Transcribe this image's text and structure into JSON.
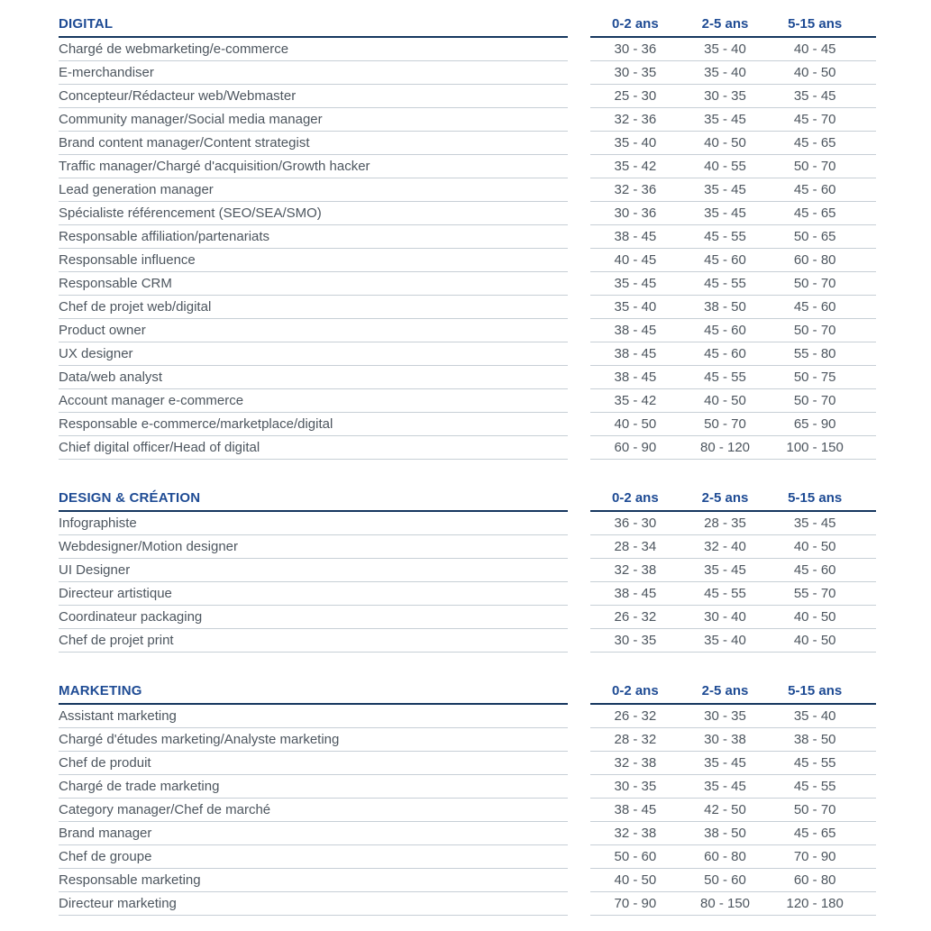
{
  "columns": [
    "0-2 ans",
    "2-5 ans",
    "5-15 ans"
  ],
  "colors": {
    "header_text": "#1e4b94",
    "header_rule": "#16375f",
    "row_rule": "#c7cfd6",
    "body_text": "#4d565f",
    "background": "#ffffff"
  },
  "sections": [
    {
      "title": "DIGITAL",
      "rows": [
        {
          "label": "Chargé de webmarketing/e-commerce",
          "values": [
            "30 - 36",
            "35 - 40",
            "40 - 45"
          ]
        },
        {
          "label": "E-merchandiser",
          "values": [
            "30 - 35",
            "35 - 40",
            "40 - 50"
          ]
        },
        {
          "label": "Concepteur/Rédacteur web/Webmaster",
          "values": [
            "25 - 30",
            "30 - 35",
            "35 - 45"
          ]
        },
        {
          "label": "Community manager/Social media manager",
          "values": [
            "32 - 36",
            "35 - 45",
            "45 - 70"
          ]
        },
        {
          "label": "Brand content manager/Content strategist",
          "values": [
            "35 - 40",
            "40 - 50",
            "45 - 65"
          ]
        },
        {
          "label": "Traffic manager/Chargé d'acquisition/Growth hacker",
          "values": [
            "35 - 42",
            "40 - 55",
            "50 - 70"
          ]
        },
        {
          "label": "Lead generation manager",
          "values": [
            "32 - 36",
            "35 - 45",
            "45 - 60"
          ]
        },
        {
          "label": "Spécialiste référencement (SEO/SEA/SMO)",
          "values": [
            "30 - 36",
            "35 - 45",
            "45 - 65"
          ]
        },
        {
          "label": "Responsable affiliation/partenariats",
          "values": [
            "38 - 45",
            "45 - 55",
            "50 - 65"
          ]
        },
        {
          "label": "Responsable influence",
          "values": [
            "40 - 45",
            "45 - 60",
            "60 - 80"
          ]
        },
        {
          "label": "Responsable CRM",
          "values": [
            "35 - 45",
            "45 - 55",
            "50 - 70"
          ]
        },
        {
          "label": "Chef de projet web/digital",
          "values": [
            "35 - 40",
            "38 - 50",
            "45 - 60"
          ]
        },
        {
          "label": "Product owner",
          "values": [
            "38 - 45",
            "45 - 60",
            "50 - 70"
          ]
        },
        {
          "label": "UX designer",
          "values": [
            "38 - 45",
            "45 - 60",
            "55 - 80"
          ]
        },
        {
          "label": "Data/web analyst",
          "values": [
            "38 - 45",
            "45 - 55",
            "50 - 75"
          ]
        },
        {
          "label": "Account manager e-commerce",
          "values": [
            "35 - 42",
            "40 - 50",
            "50 - 70"
          ]
        },
        {
          "label": "Responsable e-commerce/marketplace/digital",
          "values": [
            "40 - 50",
            "50 - 70",
            "65 - 90"
          ]
        },
        {
          "label": "Chief digital officer/Head of digital",
          "values": [
            "60 - 90",
            "80 - 120",
            "100 - 150"
          ]
        }
      ]
    },
    {
      "title": "DESIGN & CRÉATION",
      "rows": [
        {
          "label": "Infographiste",
          "values": [
            "36 - 30",
            "28 - 35",
            "35 - 45"
          ]
        },
        {
          "label": "Webdesigner/Motion designer",
          "values": [
            "28 - 34",
            "32 - 40",
            "40 - 50"
          ]
        },
        {
          "label": "UI Designer",
          "values": [
            "32 - 38",
            "35 - 45",
            "45 - 60"
          ]
        },
        {
          "label": "Directeur artistique",
          "values": [
            "38 - 45",
            "45 - 55",
            "55 - 70"
          ]
        },
        {
          "label": "Coordinateur packaging",
          "values": [
            "26 - 32",
            "30 - 40",
            "40 - 50"
          ]
        },
        {
          "label": "Chef de projet print",
          "values": [
            "30 - 35",
            "35 - 40",
            "40 - 50"
          ]
        }
      ]
    },
    {
      "title": "MARKETING",
      "rows": [
        {
          "label": "Assistant marketing",
          "values": [
            "26 - 32",
            "30 - 35",
            "35 - 40"
          ]
        },
        {
          "label": "Chargé d'études marketing/Analyste marketing",
          "values": [
            "28 - 32",
            "30 - 38",
            "38 - 50"
          ]
        },
        {
          "label": "Chef de produit",
          "values": [
            "32 - 38",
            "35 - 45",
            "45 - 55"
          ]
        },
        {
          "label": "Chargé de trade marketing",
          "values": [
            "30 - 35",
            "35 - 45",
            "45 - 55"
          ]
        },
        {
          "label": "Category manager/Chef de marché",
          "values": [
            "38 - 45",
            "42 - 50",
            "50 - 70"
          ]
        },
        {
          "label": "Brand manager",
          "values": [
            "32 - 38",
            "38 - 50",
            "45 - 65"
          ]
        },
        {
          "label": "Chef de groupe",
          "values": [
            "50 - 60",
            "60 - 80",
            "70 - 90"
          ]
        },
        {
          "label": "Responsable marketing",
          "values": [
            "40 - 50",
            "50 - 60",
            "60 - 80"
          ]
        },
        {
          "label": "Directeur marketing",
          "values": [
            "70 - 90",
            "80 - 150",
            "120 - 180"
          ]
        }
      ]
    }
  ]
}
